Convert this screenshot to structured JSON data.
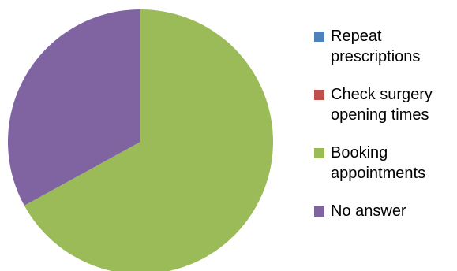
{
  "chart_data": {
    "type": "pie",
    "title": "",
    "slices": [
      {
        "label": "Repeat\nprescriptions",
        "value": 0,
        "color": "#4F81BD"
      },
      {
        "label": "Check surgery\nopening times",
        "value": 0,
        "color": "#C0504D"
      },
      {
        "label": "Booking\nappointments",
        "value": 67,
        "color": "#9BBB59"
      },
      {
        "label": "No answer",
        "value": 33,
        "color": "#8064A2"
      }
    ],
    "legend_position": "right"
  }
}
